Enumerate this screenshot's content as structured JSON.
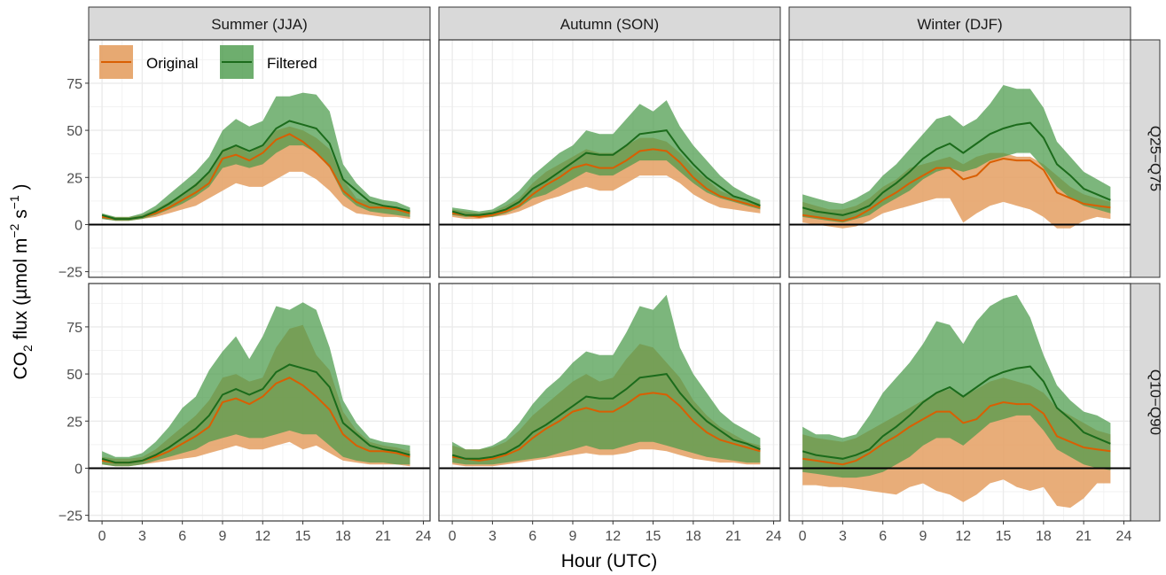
{
  "chart_data": {
    "type": "area",
    "xlabel": "Hour (UTC)",
    "ylabel": {
      "main": "CO",
      "sub": "2",
      "mid": " flux (µmol m",
      "sup1": "−2",
      "mid2": " s",
      "sup2": "−1",
      "end": " )"
    },
    "xlim": [
      -1,
      24.5
    ],
    "ylim": [
      -28,
      98
    ],
    "x_ticks": [
      0,
      3,
      6,
      9,
      12,
      15,
      18,
      21,
      24
    ],
    "y_ticks": [
      -25,
      0,
      25,
      50,
      75
    ],
    "y_tick_labels": [
      "−25",
      "0",
      "25",
      "50",
      "75"
    ],
    "columns": [
      "Summer (JJA)",
      "Autumn (SON)",
      "Winter (DJF)"
    ],
    "rows": [
      "Q25−Q75",
      "Q10−Q90"
    ],
    "legend": [
      {
        "label": "Original",
        "line": "#d95f02",
        "fill": "#e6a46a"
      },
      {
        "label": "Filtered",
        "line": "#1b6b1b",
        "fill": "#4a9a4a"
      }
    ],
    "hours": [
      0,
      1,
      2,
      3,
      4,
      5,
      6,
      7,
      8,
      9,
      10,
      11,
      12,
      13,
      14,
      15,
      16,
      17,
      18,
      19,
      20,
      21,
      22,
      23
    ],
    "panels": {
      "Summer (JJA)": {
        "original": [
          4,
          3,
          3,
          4,
          6,
          9,
          13,
          17,
          22,
          35,
          37,
          34,
          38,
          45,
          48,
          44,
          38,
          31,
          18,
          12,
          9,
          9,
          8,
          6
        ],
        "filtered": [
          5,
          3,
          3,
          4,
          7,
          11,
          16,
          21,
          28,
          39,
          42,
          39,
          42,
          51,
          55,
          53,
          51,
          43,
          24,
          18,
          12,
          10,
          9,
          7
        ],
        "orig_q25_q75": {
          "lower": [
            3,
            2,
            2,
            3,
            4,
            6,
            8,
            10,
            14,
            18,
            22,
            20,
            20,
            24,
            28,
            28,
            24,
            18,
            10,
            6,
            5,
            4,
            4,
            3
          ],
          "upper": [
            5,
            4,
            4,
            5,
            8,
            12,
            16,
            22,
            28,
            40,
            42,
            38,
            42,
            50,
            52,
            50,
            46,
            40,
            24,
            14,
            12,
            10,
            9,
            7
          ]
        },
        "filt_q25_q75": {
          "lower": [
            3,
            2,
            2,
            3,
            5,
            8,
            11,
            15,
            20,
            30,
            32,
            30,
            32,
            38,
            42,
            42,
            38,
            30,
            16,
            10,
            7,
            6,
            5,
            4
          ],
          "upper": [
            6,
            4,
            4,
            6,
            10,
            16,
            22,
            28,
            36,
            50,
            56,
            52,
            55,
            68,
            68,
            70,
            69,
            60,
            32,
            22,
            15,
            13,
            12,
            9
          ]
        },
        "orig_q10_q90": {
          "lower": [
            2,
            1,
            1,
            2,
            3,
            4,
            5,
            6,
            8,
            10,
            12,
            10,
            10,
            12,
            14,
            10,
            12,
            8,
            4,
            3,
            2,
            2,
            2,
            1
          ],
          "upper": [
            6,
            5,
            5,
            6,
            10,
            16,
            22,
            28,
            36,
            48,
            50,
            46,
            48,
            64,
            74,
            76,
            60,
            52,
            30,
            20,
            14,
            12,
            11,
            9
          ]
        },
        "filt_q10_q90": {
          "lower": [
            2,
            1,
            1,
            2,
            4,
            6,
            8,
            10,
            14,
            16,
            18,
            16,
            16,
            18,
            20,
            18,
            18,
            12,
            6,
            4,
            3,
            3,
            2,
            2
          ],
          "upper": [
            9,
            6,
            6,
            8,
            14,
            22,
            32,
            38,
            52,
            62,
            70,
            58,
            70,
            86,
            84,
            88,
            84,
            64,
            36,
            24,
            16,
            14,
            13,
            12
          ]
        }
      },
      "Autumn (SON)": {
        "original": [
          6,
          5,
          4,
          5,
          7,
          10,
          16,
          21,
          25,
          30,
          32,
          30,
          30,
          34,
          39,
          40,
          39,
          33,
          25,
          19,
          15,
          13,
          11,
          9
        ],
        "filtered": [
          7,
          5,
          5,
          6,
          8,
          12,
          19,
          23,
          28,
          33,
          38,
          37,
          37,
          42,
          48,
          49,
          50,
          40,
          32,
          25,
          20,
          15,
          13,
          10
        ],
        "orig_q25_q75": {
          "lower": [
            4,
            3,
            3,
            4,
            5,
            7,
            10,
            13,
            15,
            18,
            20,
            18,
            18,
            22,
            26,
            26,
            26,
            22,
            16,
            12,
            9,
            8,
            7,
            6
          ],
          "upper": [
            8,
            7,
            6,
            7,
            10,
            14,
            22,
            28,
            32,
            36,
            40,
            38,
            38,
            42,
            46,
            46,
            44,
            38,
            30,
            24,
            18,
            15,
            13,
            11
          ]
        },
        "filt_q25_q75": {
          "lower": [
            5,
            4,
            4,
            4,
            6,
            9,
            14,
            16,
            20,
            24,
            28,
            26,
            26,
            30,
            34,
            34,
            34,
            28,
            22,
            17,
            14,
            12,
            10,
            8
          ],
          "upper": [
            9,
            8,
            7,
            8,
            12,
            18,
            26,
            32,
            38,
            42,
            50,
            48,
            48,
            56,
            64,
            60,
            66,
            52,
            42,
            34,
            26,
            20,
            16,
            13
          ]
        },
        "orig_q10_q90": {
          "lower": [
            2,
            1,
            1,
            1,
            2,
            3,
            4,
            5,
            6,
            7,
            8,
            7,
            7,
            8,
            10,
            10,
            9,
            7,
            5,
            4,
            3,
            3,
            2,
            2
          ],
          "upper": [
            12,
            10,
            10,
            11,
            14,
            20,
            28,
            34,
            40,
            46,
            50,
            46,
            48,
            58,
            66,
            64,
            56,
            48,
            36,
            28,
            22,
            18,
            14,
            12
          ]
        },
        "filt_q10_q90": {
          "lower": [
            3,
            2,
            2,
            2,
            3,
            4,
            5,
            6,
            8,
            10,
            12,
            10,
            10,
            12,
            14,
            14,
            12,
            10,
            8,
            6,
            5,
            4,
            3,
            3
          ],
          "upper": [
            14,
            10,
            10,
            12,
            16,
            24,
            34,
            42,
            48,
            56,
            62,
            60,
            60,
            72,
            86,
            84,
            92,
            64,
            50,
            40,
            30,
            24,
            20,
            16
          ]
        }
      },
      "Winter (DJF)": {
        "original": [
          5,
          4,
          3,
          2,
          4,
          8,
          13,
          17,
          22,
          26,
          30,
          30,
          24,
          26,
          33,
          35,
          34,
          34,
          29,
          17,
          14,
          11,
          10,
          9
        ],
        "filtered": [
          9,
          7,
          6,
          5,
          7,
          10,
          17,
          22,
          28,
          35,
          40,
          43,
          38,
          43,
          48,
          51,
          53,
          54,
          46,
          32,
          26,
          19,
          16,
          13
        ],
        "orig_q25_q75": {
          "lower": [
            1,
            0,
            -1,
            -2,
            -1,
            2,
            6,
            8,
            10,
            12,
            14,
            14,
            1,
            6,
            10,
            12,
            10,
            8,
            4,
            -2,
            -2,
            2,
            4,
            3
          ],
          "upper": [
            12,
            10,
            8,
            8,
            10,
            14,
            20,
            24,
            30,
            32,
            34,
            36,
            32,
            36,
            38,
            38,
            36,
            36,
            32,
            26,
            20,
            16,
            14,
            12
          ]
        },
        "filt_q25_q75": {
          "lower": [
            4,
            3,
            2,
            1,
            3,
            5,
            10,
            14,
            18,
            24,
            28,
            30,
            28,
            30,
            34,
            36,
            38,
            38,
            30,
            20,
            14,
            10,
            8,
            6
          ],
          "upper": [
            16,
            14,
            12,
            11,
            14,
            18,
            26,
            32,
            40,
            48,
            56,
            58,
            52,
            56,
            64,
            74,
            72,
            72,
            62,
            44,
            36,
            28,
            24,
            20
          ]
        },
        "orig_q10_q90": {
          "lower": [
            -9,
            -9,
            -10,
            -10,
            -11,
            -12,
            -13,
            -14,
            -10,
            -8,
            -12,
            -14,
            -18,
            -14,
            -8,
            -6,
            -10,
            -12,
            -10,
            -20,
            -21,
            -16,
            -8,
            -8
          ],
          "upper": [
            18,
            16,
            15,
            14,
            16,
            20,
            24,
            28,
            32,
            36,
            40,
            42,
            38,
            42,
            46,
            48,
            46,
            44,
            40,
            32,
            28,
            24,
            20,
            18
          ]
        },
        "filt_q10_q90": {
          "lower": [
            -2,
            -3,
            -4,
            -5,
            -5,
            -4,
            -2,
            2,
            6,
            12,
            16,
            16,
            12,
            18,
            24,
            26,
            28,
            28,
            20,
            10,
            6,
            2,
            0,
            -1
          ],
          "upper": [
            22,
            18,
            18,
            16,
            18,
            28,
            40,
            48,
            56,
            66,
            78,
            76,
            66,
            78,
            86,
            90,
            92,
            80,
            60,
            44,
            36,
            30,
            28,
            24
          ]
        }
      }
    }
  }
}
